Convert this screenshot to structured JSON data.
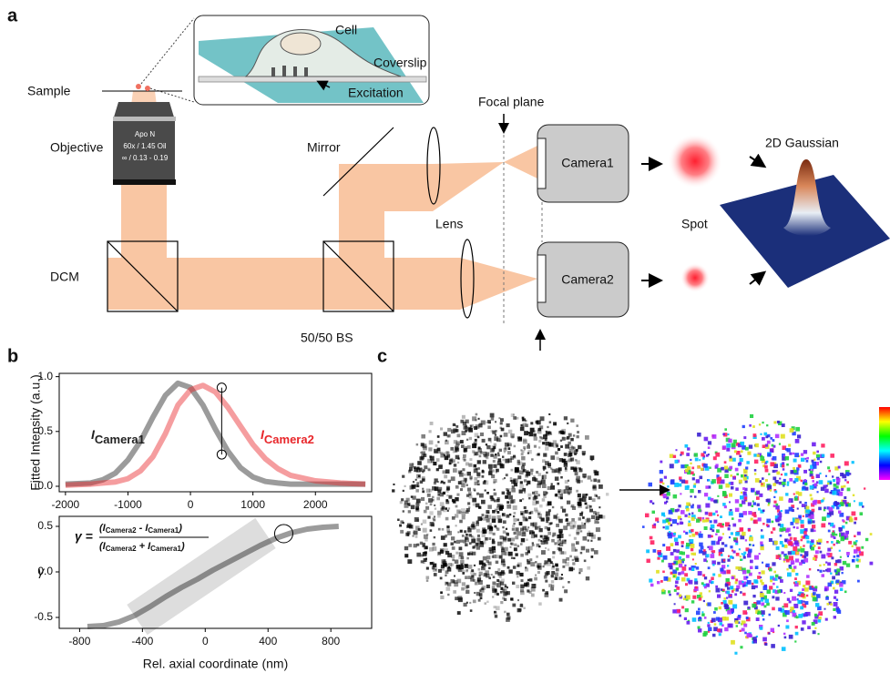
{
  "panel_labels": [
    "a",
    "b",
    "c"
  ],
  "diagram": {
    "sample": "Sample",
    "objective": "Objective",
    "dcm": "DCM",
    "mirror": "Mirror",
    "splitter": "50/50 BS",
    "lens": "Lens",
    "focal_plane": "Focal plane",
    "camera1": "Camera1",
    "camera2": "Camera2",
    "spot": "Spot",
    "gaussian": "2D Gaussian",
    "cell": "Cell",
    "coverslip": "Coverslip",
    "excitation": "Excitation",
    "objective_text": [
      "Apo N",
      "60x / 1.45 Oil",
      "∞ / 0.13 - 0.19"
    ]
  },
  "chart_data": [
    {
      "type": "line",
      "y_label": "Fitted Intensity (a.u.)",
      "symbol": "I",
      "x": [
        -2000,
        -1600,
        -1400,
        -1200,
        -1000,
        -800,
        -600,
        -400,
        -200,
        0,
        200,
        400,
        600,
        800,
        1000,
        1200,
        1400,
        1600,
        2000,
        2400,
        2800
      ],
      "series": [
        {
          "name": "Camera1",
          "color": "#222222",
          "values": [
            0.02,
            0.03,
            0.06,
            0.12,
            0.24,
            0.41,
            0.63,
            0.83,
            0.94,
            0.9,
            0.74,
            0.52,
            0.32,
            0.17,
            0.085,
            0.044,
            0.03,
            0.02,
            0.02,
            0.02,
            0.02
          ]
        },
        {
          "name": "Camera2",
          "color": "#e8262a",
          "values": [
            0.01,
            0.02,
            0.03,
            0.04,
            0.07,
            0.14,
            0.27,
            0.48,
            0.74,
            0.88,
            0.92,
            0.86,
            0.72,
            0.55,
            0.38,
            0.25,
            0.16,
            0.1,
            0.05,
            0.03,
            0.02
          ]
        }
      ],
      "xlim": [
        -2100,
        2900
      ],
      "ylim": [
        -0.05,
        1.03
      ],
      "xticks": [
        -2000,
        -1000,
        0,
        1000,
        2000
      ],
      "yticks": [
        {
          "value": 0,
          "label": "0.0"
        },
        0.5,
        {
          "value": 1,
          "label": "1.0"
        }
      ]
    },
    {
      "type": "line",
      "x_label": "Rel. axial coordinate (nm)",
      "y_label": "γ",
      "formula": {
        "lhs": "γ =",
        "numerator": [
          "(I",
          "Camera2",
          " - I",
          "Camera1",
          ")"
        ],
        "denominator": [
          "(I",
          "Camera2",
          " + I",
          "Camera1",
          ")"
        ]
      },
      "x": [
        -750,
        -650,
        -550,
        -450,
        -350,
        -250,
        -150,
        -50,
        50,
        150,
        250,
        350,
        450,
        550,
        650,
        750,
        850
      ],
      "series": [
        {
          "color": "#222222",
          "values": [
            -0.6,
            -0.59,
            -0.55,
            -0.48,
            -0.38,
            -0.27,
            -0.17,
            -0.08,
            0.02,
            0.11,
            0.2,
            0.29,
            0.37,
            0.43,
            0.47,
            0.49,
            0.5
          ]
        }
      ],
      "xlim": [
        -930,
        1060
      ],
      "ylim": [
        -0.62,
        0.61
      ],
      "xticks": [
        -800,
        -400,
        0,
        400,
        800
      ],
      "yticks": [
        -0.5,
        {
          "value": 0,
          "label": "0.0"
        },
        0.5
      ]
    }
  ]
}
